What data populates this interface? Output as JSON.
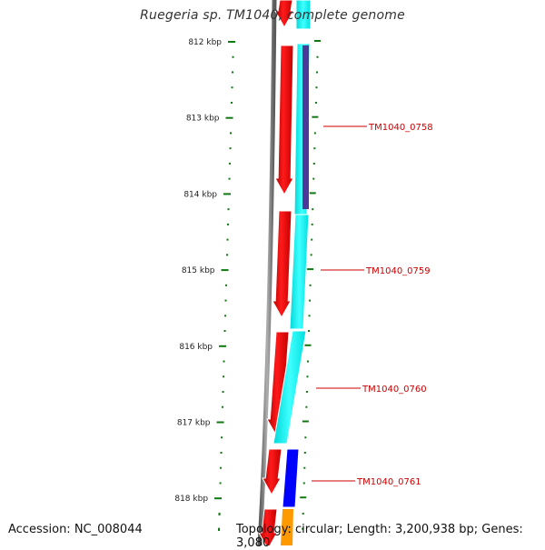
{
  "title": "Ruegeria sp. TM1040, complete genome",
  "footer": {
    "accession": "Accession: NC_008044",
    "topology": "Topology: circular; Length: 3,200,938 bp; Genes: 3,080"
  },
  "colors": {
    "backbone": "#7a7a7a",
    "forward_gene": "#ff0000",
    "reverse_gene": "#00ffff",
    "feature_purple": "#4b3a9a",
    "feature_blue": "#0000ff",
    "feature_orange": "#ff9900",
    "tick": "#117711",
    "label": "#cc0000"
  },
  "ruler": {
    "unit": "kbp",
    "major_ticks": [
      "812 kbp",
      "813 kbp",
      "814 kbp",
      "815 kbp",
      "816 kbp",
      "817 kbp",
      "818 kbp"
    ]
  },
  "gene_labels": [
    "TM1040_0758",
    "TM1040_0759",
    "TM1040_0760",
    "TM1040_0761"
  ]
}
